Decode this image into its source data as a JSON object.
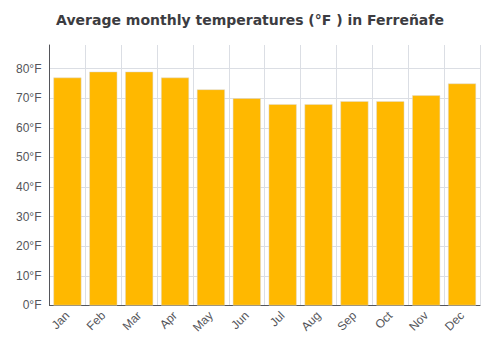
{
  "chart_data": {
    "type": "bar",
    "title": "Average monthly temperatures (°F ) in Ferreñafe",
    "categories": [
      "Jan",
      "Feb",
      "Mar",
      "Apr",
      "May",
      "Jun",
      "Jul",
      "Aug",
      "Sep",
      "Oct",
      "Nov",
      "Dec"
    ],
    "values": [
      77,
      79,
      79,
      77,
      73,
      70,
      68,
      68,
      69,
      69,
      71,
      75
    ],
    "color": "#FFB800",
    "ylim": [
      0,
      88
    ],
    "yticks": [
      {
        "value": 0,
        "label": "0°F"
      },
      {
        "value": 10,
        "label": "10°F"
      },
      {
        "value": 20,
        "label": "20°F"
      },
      {
        "value": 30,
        "label": "30°F"
      },
      {
        "value": 40,
        "label": "40°F"
      },
      {
        "value": 50,
        "label": "50°F"
      },
      {
        "value": 60,
        "label": "60°F"
      },
      {
        "value": 70,
        "label": "70°F"
      },
      {
        "value": 80,
        "label": "80°F"
      }
    ],
    "grid": true
  }
}
